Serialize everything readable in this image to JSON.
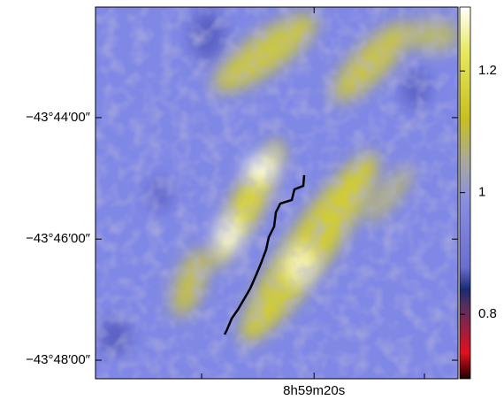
{
  "chart_data": {
    "type": "image",
    "xlim": [
      134.915,
      134.7795
    ],
    "xticks": [
      {
        "value": 134.8333,
        "label": "8h59m20s"
      }
    ],
    "ylim": [
      -43.8051,
      -43.7029
    ],
    "yticks": [
      {
        "value": -43.7333,
        "label": "−43°44′00″"
      },
      {
        "value": -43.7667,
        "label": "−43°46′00″"
      },
      {
        "value": -43.8,
        "label": "−43°48′00″"
      }
    ],
    "clim": [
      0.694,
      1.305
    ],
    "cticks": [
      0.8,
      1,
      1.2
    ]
  }
}
